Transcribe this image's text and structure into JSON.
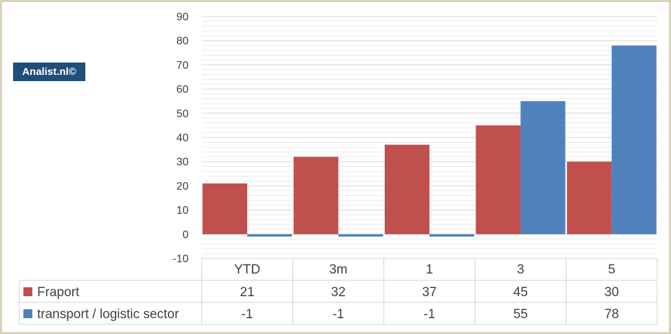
{
  "watermark": "Analist.nl©",
  "chart_data": {
    "type": "bar",
    "categories": [
      "YTD",
      "3m",
      "1",
      "3",
      "5"
    ],
    "series": [
      {
        "name": "Fraport",
        "values": [
          21,
          32,
          37,
          45,
          30
        ],
        "color": "#c0504d"
      },
      {
        "name": "transport / logistic sector",
        "values": [
          -1,
          -1,
          -1,
          55,
          78
        ],
        "color": "#4f81bd"
      }
    ],
    "ylim": [
      -10,
      90
    ],
    "yticks": [
      -10,
      0,
      10,
      20,
      30,
      40,
      50,
      60,
      70,
      80,
      90
    ],
    "grid": true,
    "legend": "data-table"
  }
}
